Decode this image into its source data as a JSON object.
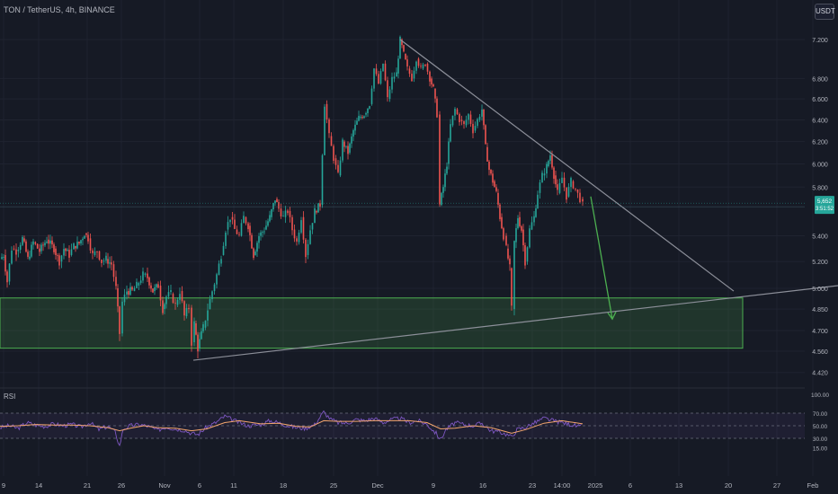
{
  "header": {
    "title": "TON / TetherUS, 4h, BINANCE",
    "currency": "USDT"
  },
  "price_label": {
    "value": "5,652",
    "countdown": "3:51:52",
    "color": "#26a69a"
  },
  "rsi": {
    "label": "RSI",
    "ticks": [
      "100.00",
      "70.00",
      "50.00",
      "30.00",
      "15.00"
    ]
  },
  "colors": {
    "background": "#161a25",
    "up": "#26a69a",
    "down": "#ef5350",
    "zone": "#4caf50",
    "trendline": "#8c8f99",
    "arrow": "#4caf50",
    "rsi_line": "#7e57c2",
    "rsi_ma": "#f3a56d"
  },
  "chart_data": {
    "type": "candlestick",
    "title": "TON / TetherUS, 4h, BINANCE",
    "ylim": [
      4.45,
      7.3
    ],
    "y_ticks": [
      {
        "v": 7.2,
        "label": "7.200"
      },
      {
        "v": 6.8,
        "label": "6.800"
      },
      {
        "v": 6.6,
        "label": "6.600"
      },
      {
        "v": 6.4,
        "label": "6.400"
      },
      {
        "v": 6.2,
        "label": "6.200"
      },
      {
        "v": 6.0,
        "label": "6.000"
      },
      {
        "v": 5.8,
        "label": "5.800"
      },
      {
        "v": 5.4,
        "label": "5.400"
      },
      {
        "v": 5.2,
        "label": "5.200"
      },
      {
        "v": 5.0,
        "label": "5.000"
      },
      {
        "v": 4.85,
        "label": "4.850"
      },
      {
        "v": 4.7,
        "label": "4.700"
      },
      {
        "v": 4.56,
        "label": "4.560"
      },
      {
        "v": 4.42,
        "label": "4.420"
      }
    ],
    "x_ticks": [
      "9",
      "14",
      "21",
      "26",
      "Nov",
      "6",
      "11",
      "18",
      "25",
      "Dec",
      "9",
      "16",
      "23",
      "14:00",
      "2025",
      "6",
      "13",
      "20",
      "27",
      "Feb"
    ],
    "price_path": [
      [
        0,
        5.22
      ],
      [
        4,
        5.25
      ],
      [
        8,
        5.05
      ],
      [
        13,
        5.3
      ],
      [
        18,
        5.28
      ],
      [
        25,
        5.38
      ],
      [
        31,
        5.22
      ],
      [
        37,
        5.35
      ],
      [
        44,
        5.28
      ],
      [
        52,
        5.37
      ],
      [
        60,
        5.3
      ],
      [
        66,
        5.2
      ],
      [
        71,
        5.3
      ],
      [
        77,
        5.25
      ],
      [
        82,
        5.32
      ],
      [
        88,
        5.34
      ],
      [
        94,
        5.42
      ],
      [
        98,
        5.38
      ],
      [
        103,
        5.25
      ],
      [
        108,
        5.28
      ],
      [
        113,
        5.2
      ],
      [
        118,
        5.22
      ],
      [
        124,
        5.18
      ],
      [
        129,
        5.0
      ],
      [
        133,
        4.68
      ],
      [
        136,
        4.9
      ],
      [
        141,
        4.98
      ],
      [
        147,
        4.98
      ],
      [
        152,
        5.02
      ],
      [
        159,
        5.1
      ],
      [
        164,
        5.08
      ],
      [
        170,
        4.98
      ],
      [
        176,
        5.02
      ],
      [
        181,
        4.85
      ],
      [
        185,
        4.94
      ],
      [
        190,
        4.96
      ],
      [
        195,
        4.88
      ],
      [
        200,
        4.98
      ],
      [
        205,
        4.8
      ],
      [
        210,
        4.86
      ],
      [
        213,
        4.62
      ],
      [
        216,
        4.75
      ],
      [
        220,
        4.58
      ],
      [
        226,
        4.72
      ],
      [
        231,
        4.85
      ],
      [
        236,
        4.98
      ],
      [
        241,
        5.1
      ],
      [
        246,
        5.25
      ],
      [
        251,
        5.45
      ],
      [
        256,
        5.55
      ],
      [
        261,
        5.45
      ],
      [
        266,
        5.4
      ],
      [
        271,
        5.55
      ],
      [
        276,
        5.48
      ],
      [
        282,
        5.25
      ],
      [
        288,
        5.4
      ],
      [
        294,
        5.45
      ],
      [
        300,
        5.55
      ],
      [
        306,
        5.7
      ],
      [
        310,
        5.62
      ],
      [
        315,
        5.55
      ],
      [
        320,
        5.6
      ],
      [
        325,
        5.45
      ],
      [
        330,
        5.35
      ],
      [
        335,
        5.55
      ],
      [
        340,
        5.25
      ],
      [
        345,
        5.45
      ],
      [
        350,
        5.6
      ],
      [
        356,
        5.65
      ],
      [
        361,
        6.55
      ],
      [
        366,
        6.25
      ],
      [
        371,
        6.05
      ],
      [
        376,
        5.9
      ],
      [
        381,
        6.2
      ],
      [
        387,
        6.1
      ],
      [
        393,
        6.3
      ],
      [
        399,
        6.42
      ],
      [
        405,
        6.45
      ],
      [
        411,
        6.55
      ],
      [
        416,
        6.9
      ],
      [
        421,
        6.75
      ],
      [
        426,
        6.95
      ],
      [
        431,
        6.6
      ],
      [
        436,
        6.8
      ],
      [
        441,
        6.85
      ],
      [
        445,
        7.2
      ],
      [
        449,
        7.05
      ],
      [
        453,
        6.9
      ],
      [
        458,
        6.8
      ],
      [
        463,
        7.0
      ],
      [
        468,
        6.9
      ],
      [
        473,
        6.95
      ],
      [
        478,
        6.8
      ],
      [
        482,
        6.7
      ],
      [
        486,
        6.45
      ],
      [
        489,
        5.65
      ],
      [
        493,
        5.8
      ],
      [
        497,
        6.0
      ],
      [
        501,
        6.35
      ],
      [
        506,
        6.5
      ],
      [
        511,
        6.4
      ],
      [
        516,
        6.35
      ],
      [
        521,
        6.45
      ],
      [
        526,
        6.3
      ],
      [
        531,
        6.4
      ],
      [
        536,
        6.5
      ],
      [
        540,
        6.15
      ],
      [
        544,
        5.95
      ],
      [
        548,
        5.85
      ],
      [
        552,
        5.75
      ],
      [
        556,
        5.55
      ],
      [
        560,
        5.4
      ],
      [
        563,
        5.3
      ],
      [
        567,
        5.15
      ],
      [
        569,
        4.85
      ],
      [
        572,
        5.35
      ],
      [
        576,
        5.55
      ],
      [
        580,
        5.45
      ],
      [
        584,
        5.2
      ],
      [
        589,
        5.45
      ],
      [
        594,
        5.55
      ],
      [
        598,
        5.75
      ],
      [
        603,
        5.9
      ],
      [
        608,
        5.98
      ],
      [
        612,
        6.08
      ],
      [
        616,
        5.9
      ],
      [
        620,
        5.75
      ],
      [
        625,
        5.88
      ],
      [
        630,
        5.72
      ],
      [
        635,
        5.85
      ],
      [
        640,
        5.78
      ],
      [
        645,
        5.7
      ],
      [
        648,
        5.65
      ]
    ],
    "zone": {
      "y_top": 4.93,
      "y_bottom": 4.58,
      "x_start_px_note": "support zone"
    },
    "trendlines": [
      {
        "name": "descending resistance",
        "from": [
          445,
          7.2
        ],
        "to": [
          816,
          4.98
        ]
      },
      {
        "name": "ascending support",
        "from": [
          215,
          4.5
        ],
        "to": [
          932,
          5.02
        ]
      }
    ],
    "projection_arrow": {
      "from": [
        657,
        5.72
      ],
      "to": [
        681,
        4.78
      ]
    },
    "rsi": {
      "ylim": [
        10,
        100
      ],
      "overbought": 70,
      "mid": 50,
      "oversold": 30,
      "values": [
        [
          0,
          47
        ],
        [
          10,
          50
        ],
        [
          20,
          46
        ],
        [
          30,
          55
        ],
        [
          40,
          51
        ],
        [
          50,
          49
        ],
        [
          60,
          53
        ],
        [
          70,
          50
        ],
        [
          80,
          52
        ],
        [
          90,
          48
        ],
        [
          100,
          55
        ],
        [
          110,
          44
        ],
        [
          120,
          49
        ],
        [
          128,
          40
        ],
        [
          133,
          18
        ],
        [
          137,
          45
        ],
        [
          145,
          50
        ],
        [
          155,
          52
        ],
        [
          165,
          49
        ],
        [
          175,
          43
        ],
        [
          185,
          48
        ],
        [
          195,
          45
        ],
        [
          205,
          43
        ],
        [
          213,
          38
        ],
        [
          220,
          36
        ],
        [
          230,
          48
        ],
        [
          240,
          55
        ],
        [
          250,
          65
        ],
        [
          258,
          60
        ],
        [
          266,
          55
        ],
        [
          276,
          50
        ],
        [
          290,
          52
        ],
        [
          300,
          58
        ],
        [
          310,
          55
        ],
        [
          320,
          50
        ],
        [
          330,
          47
        ],
        [
          340,
          46
        ],
        [
          350,
          52
        ],
        [
          360,
          72
        ],
        [
          368,
          60
        ],
        [
          376,
          55
        ],
        [
          386,
          54
        ],
        [
          396,
          60
        ],
        [
          406,
          58
        ],
        [
          416,
          62
        ],
        [
          426,
          55
        ],
        [
          436,
          60
        ],
        [
          445,
          62
        ],
        [
          455,
          55
        ],
        [
          465,
          58
        ],
        [
          475,
          52
        ],
        [
          485,
          38
        ],
        [
          490,
          28
        ],
        [
          496,
          44
        ],
        [
          506,
          55
        ],
        [
          516,
          52
        ],
        [
          526,
          50
        ],
        [
          536,
          54
        ],
        [
          546,
          42
        ],
        [
          556,
          40
        ],
        [
          564,
          36
        ],
        [
          569,
          32
        ],
        [
          575,
          44
        ],
        [
          585,
          48
        ],
        [
          595,
          55
        ],
        [
          605,
          62
        ],
        [
          615,
          58
        ],
        [
          625,
          55
        ],
        [
          635,
          52
        ],
        [
          645,
          48
        ],
        [
          648,
          50
        ]
      ],
      "ma_values": [
        [
          0,
          49
        ],
        [
          20,
          50
        ],
        [
          40,
          52
        ],
        [
          60,
          51
        ],
        [
          80,
          51
        ],
        [
          100,
          50
        ],
        [
          120,
          47
        ],
        [
          133,
          42
        ],
        [
          145,
          46
        ],
        [
          160,
          50
        ],
        [
          175,
          47
        ],
        [
          195,
          46
        ],
        [
          213,
          42
        ],
        [
          230,
          45
        ],
        [
          250,
          55
        ],
        [
          266,
          58
        ],
        [
          290,
          53
        ],
        [
          310,
          54
        ],
        [
          330,
          49
        ],
        [
          345,
          48
        ],
        [
          360,
          58
        ],
        [
          376,
          57
        ],
        [
          396,
          57
        ],
        [
          416,
          58
        ],
        [
          436,
          58
        ],
        [
          455,
          58
        ],
        [
          475,
          55
        ],
        [
          490,
          45
        ],
        [
          506,
          46
        ],
        [
          526,
          50
        ],
        [
          546,
          47
        ],
        [
          564,
          40
        ],
        [
          569,
          38
        ],
        [
          585,
          44
        ],
        [
          605,
          54
        ],
        [
          625,
          58
        ],
        [
          648,
          53
        ]
      ]
    }
  }
}
